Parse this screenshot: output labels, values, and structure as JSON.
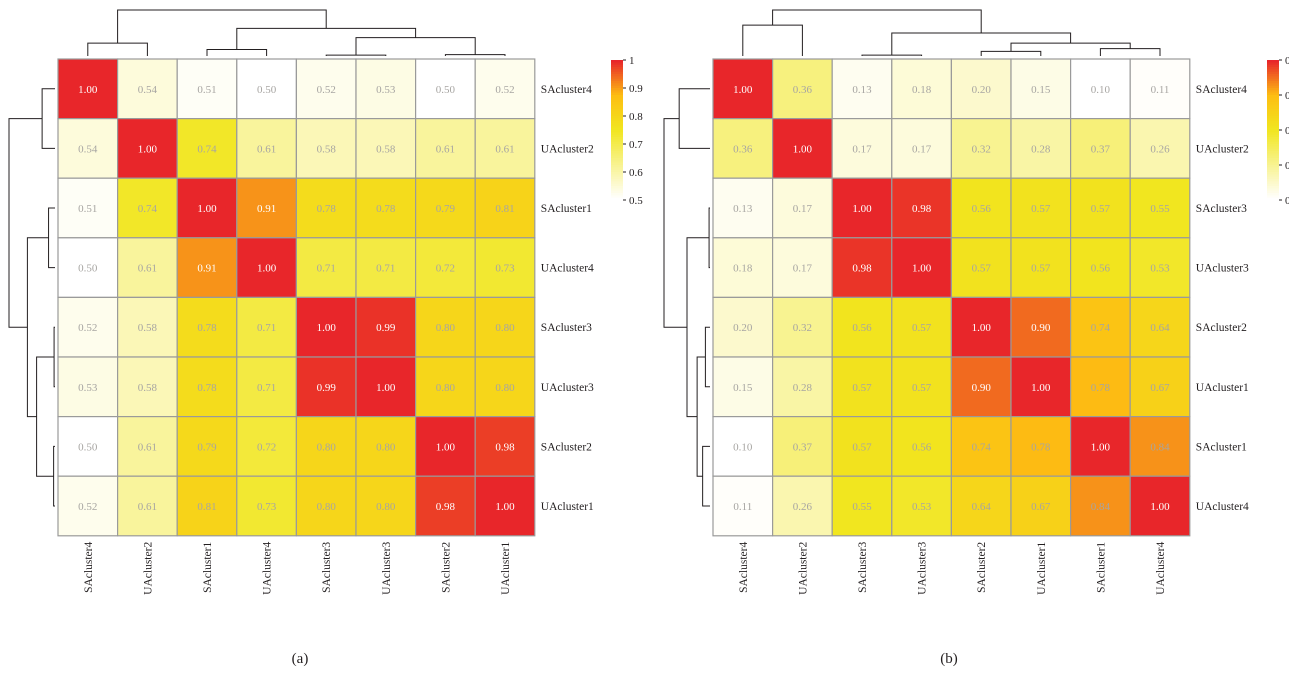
{
  "chart_data": [
    {
      "type": "heatmap",
      "panel_label": "(a)",
      "rows": [
        "SAcluster4",
        "UAcluster2",
        "SAcluster1",
        "UAcluster4",
        "SAcluster3",
        "UAcluster3",
        "SAcluster2",
        "UAcluster1"
      ],
      "columns": [
        "SAcluster4",
        "UAcluster2",
        "SAcluster1",
        "UAcluster4",
        "SAcluster3",
        "UAcluster3",
        "SAcluster2",
        "UAcluster1"
      ],
      "values": [
        [
          "1.00",
          "0.54",
          "0.51",
          "0.50",
          "0.52",
          "0.53",
          "0.50",
          "0.52"
        ],
        [
          "0.54",
          "1.00",
          "0.74",
          "0.61",
          "0.58",
          "0.58",
          "0.61",
          "0.61"
        ],
        [
          "0.51",
          "0.74",
          "1.00",
          "0.91",
          "0.78",
          "0.78",
          "0.79",
          "0.81"
        ],
        [
          "0.50",
          "0.61",
          "0.91",
          "1.00",
          "0.71",
          "0.71",
          "0.72",
          "0.73"
        ],
        [
          "0.52",
          "0.58",
          "0.78",
          "0.71",
          "1.00",
          "0.99",
          "0.80",
          "0.80"
        ],
        [
          "0.53",
          "0.58",
          "0.78",
          "0.71",
          "0.99",
          "1.00",
          "0.80",
          "0.80"
        ],
        [
          "0.50",
          "0.61",
          "0.79",
          "0.72",
          "0.80",
          "0.80",
          "1.00",
          "0.98"
        ],
        [
          "0.52",
          "0.61",
          "0.81",
          "0.73",
          "0.80",
          "0.80",
          "0.98",
          "1.00"
        ]
      ],
      "scale_min": 0.5,
      "scale_max": 1.0,
      "colorbar_ticks": [
        "1",
        "0.9",
        "0.8",
        "0.7",
        "0.6",
        "0.5"
      ],
      "colors": {
        "low": "#ffffff",
        "mid": "#f1e61f",
        "high_mid": "#fdbe12",
        "high": "#e8262a"
      },
      "dendrogram_cols": [
        {
          "a": 0,
          "b": 1,
          "h": 0.28
        },
        {
          "a": 4,
          "b": 5,
          "h": 0.02
        },
        {
          "a": 6,
          "b": 7,
          "h": 0.03
        },
        {
          "a": "n1",
          "b": "n2",
          "h": 0.4
        },
        {
          "a": 2,
          "b": 3,
          "h": 0.14
        },
        {
          "a": "n4",
          "b": "n3",
          "h": 0.6
        },
        {
          "a": "n0",
          "b": "n5",
          "h": 1.0
        }
      ],
      "dendrogram_rows": [
        {
          "a": 0,
          "b": 1,
          "h": 0.28
        },
        {
          "a": 4,
          "b": 5,
          "h": 0.02
        },
        {
          "a": 6,
          "b": 7,
          "h": 0.03
        },
        {
          "a": "n1",
          "b": "n2",
          "h": 0.4
        },
        {
          "a": 2,
          "b": 3,
          "h": 0.14
        },
        {
          "a": "n4",
          "b": "n3",
          "h": 0.6
        },
        {
          "a": "n0",
          "b": "n5",
          "h": 1.0
        }
      ]
    },
    {
      "type": "heatmap",
      "panel_label": "(b)",
      "rows": [
        "SAcluster4",
        "UAcluster2",
        "SAcluster3",
        "UAcluster3",
        "SAcluster2",
        "UAcluster1",
        "SAcluster1",
        "UAcluster4"
      ],
      "columns": [
        "SAcluster4",
        "UAcluster2",
        "SAcluster3",
        "UAcluster3",
        "SAcluster2",
        "UAcluster1",
        "SAcluster1",
        "UAcluster4"
      ],
      "values": [
        [
          "1.00",
          "0.36",
          "0.13",
          "0.18",
          "0.20",
          "0.15",
          "0.10",
          "0.11"
        ],
        [
          "0.36",
          "1.00",
          "0.17",
          "0.17",
          "0.32",
          "0.28",
          "0.37",
          "0.26"
        ],
        [
          "0.13",
          "0.17",
          "1.00",
          "0.98",
          "0.56",
          "0.57",
          "0.57",
          "0.55"
        ],
        [
          "0.18",
          "0.17",
          "0.98",
          "1.00",
          "0.57",
          "0.57",
          "0.56",
          "0.53"
        ],
        [
          "0.20",
          "0.32",
          "0.56",
          "0.57",
          "1.00",
          "0.90",
          "0.74",
          "0.64"
        ],
        [
          "0.15",
          "0.28",
          "0.57",
          "0.57",
          "0.90",
          "1.00",
          "0.78",
          "0.67"
        ],
        [
          "0.10",
          "0.37",
          "0.57",
          "0.56",
          "0.74",
          "0.78",
          "1.00",
          "0.84"
        ],
        [
          "0.11",
          "0.26",
          "0.55",
          "0.53",
          "0.64",
          "0.67",
          "0.84",
          "1.00"
        ]
      ],
      "scale_min": 0.1,
      "scale_max": 1.0,
      "colorbar_ticks": [
        "0",
        "0",
        "0",
        "0",
        "0"
      ],
      "colors": {
        "low": "#ffffff",
        "mid": "#f1e61f",
        "high_mid": "#fdbe12",
        "high": "#e8262a"
      },
      "dendrogram_cols": [
        {
          "a": 0,
          "b": 1,
          "h": 0.67
        },
        {
          "a": 2,
          "b": 3,
          "h": 0.02
        },
        {
          "a": 4,
          "b": 5,
          "h": 0.1
        },
        {
          "a": 6,
          "b": 7,
          "h": 0.16
        },
        {
          "a": "n2",
          "b": "n3",
          "h": 0.28
        },
        {
          "a": "n1",
          "b": "n4",
          "h": 0.5
        },
        {
          "a": "n0",
          "b": "n5",
          "h": 1.0
        }
      ],
      "dendrogram_rows": [
        {
          "a": 0,
          "b": 1,
          "h": 0.67
        },
        {
          "a": 2,
          "b": 3,
          "h": 0.02
        },
        {
          "a": 4,
          "b": 5,
          "h": 0.1
        },
        {
          "a": 6,
          "b": 7,
          "h": 0.16
        },
        {
          "a": "n2",
          "b": "n3",
          "h": 0.28
        },
        {
          "a": "n1",
          "b": "n4",
          "h": 0.5
        },
        {
          "a": "n0",
          "b": "n5",
          "h": 1.0
        }
      ]
    }
  ]
}
